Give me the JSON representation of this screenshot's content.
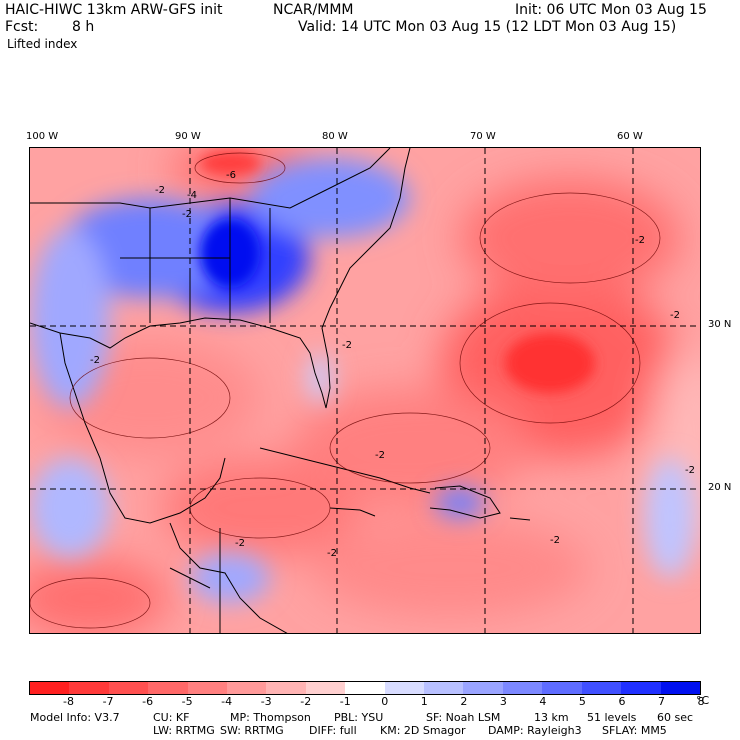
{
  "header": {
    "model_title": "HAIC-HIWC 13km ARW-GFS init",
    "organization": "NCAR/MMM",
    "init_time": "Init: 06 UTC Mon 03 Aug 15",
    "fcst_label": "Fcst:",
    "fcst_value": "8 h",
    "valid_time": "Valid: 14 UTC Mon 03 Aug 15 (12 LDT Mon 03 Aug 15)",
    "field_name": "Lifted index"
  },
  "map": {
    "lon_labels": [
      "100 W",
      "90 W",
      "80 W",
      "70 W",
      "60 W"
    ],
    "lat_labels": [
      "30 N",
      "20 N"
    ],
    "contour_labels": [
      "-2",
      "-4",
      "-6",
      "-2",
      "-2",
      "-2",
      "-2",
      "-2",
      "-2",
      "-2",
      "-2",
      "-2",
      "-2"
    ]
  },
  "colorbar": {
    "ticks": [
      "-8",
      "-7",
      "-6",
      "-5",
      "-4",
      "-3",
      "-2",
      "-1",
      "0",
      "1",
      "2",
      "3",
      "4",
      "5",
      "6",
      "7",
      "8"
    ],
    "unit": "°C",
    "colors": [
      "#ff2020",
      "#ff3a3a",
      "#ff5050",
      "#ff6868",
      "#ff8080",
      "#ff9a9a",
      "#ffb4b4",
      "#ffd0d0",
      "#ffffff",
      "#d8dcff",
      "#b8c0ff",
      "#9aa4ff",
      "#7c88ff",
      "#5e6cff",
      "#4050ff",
      "#2030ff",
      "#0010f0"
    ]
  },
  "footer": {
    "line1": [
      "Model Info: V3.7",
      "CU: KF",
      "MP: Thompson",
      "PBL: YSU",
      "SF: Noah LSM",
      "13 km",
      "51 levels",
      "60 sec"
    ],
    "line2": [
      "LW: RRTMG",
      "SW: RRTMG",
      "DIFF: full",
      "KM: 2D Smagor",
      "DAMP: Rayleigh3",
      "SFLAY: MM5"
    ]
  }
}
